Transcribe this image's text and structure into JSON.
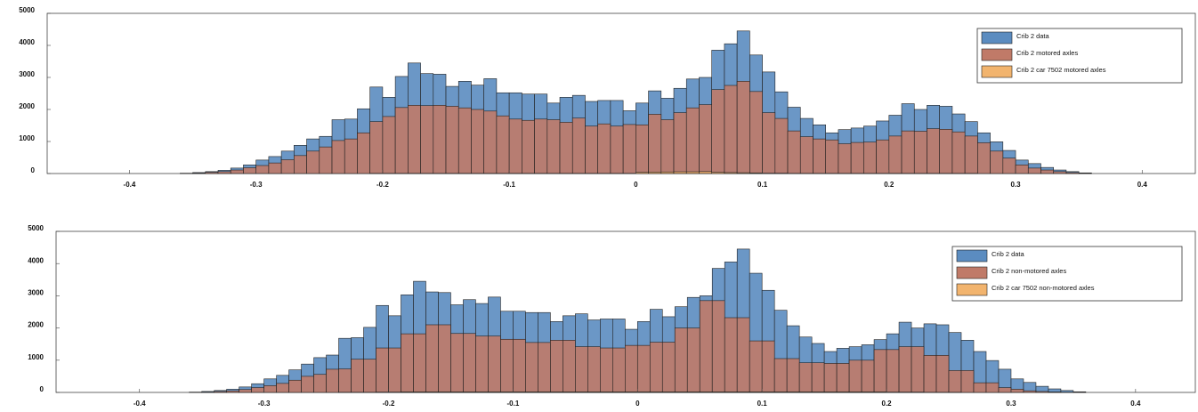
{
  "chart_data": [
    {
      "type": "histogram",
      "legend": "upper right",
      "grid": false,
      "xlim": [
        -0.465,
        0.442
      ],
      "ylim": [
        0,
        5000
      ],
      "xticks": [
        -0.4,
        -0.3,
        -0.2,
        -0.1,
        0,
        0.1,
        0.2,
        0.3,
        0.4
      ],
      "yticks": [
        0,
        1000,
        2000,
        3000,
        4000,
        5000
      ],
      "bins": [
        -0.36,
        -0.35,
        -0.34,
        -0.33,
        -0.32,
        -0.31,
        -0.3,
        -0.29,
        -0.28,
        -0.27,
        -0.26,
        -0.25,
        -0.24,
        -0.23,
        -0.22,
        -0.21,
        -0.2,
        -0.19,
        -0.18,
        -0.17,
        -0.16,
        -0.15,
        -0.14,
        -0.13,
        -0.12,
        -0.11,
        -0.1,
        -0.09,
        -0.08,
        -0.07,
        -0.06,
        -0.05,
        -0.04,
        -0.03,
        -0.02,
        -0.01,
        0,
        0.01,
        0.02,
        0.03,
        0.04,
        0.05,
        0.06,
        0.07,
        0.08,
        0.09,
        0.1,
        0.11,
        0.12,
        0.13,
        0.14,
        0.15,
        0.16,
        0.17,
        0.18,
        0.19,
        0.2,
        0.21,
        0.22,
        0.23,
        0.24,
        0.25,
        0.26,
        0.27,
        0.28,
        0.29,
        0.3,
        0.31,
        0.32,
        0.33,
        0.34,
        0.35,
        0.36
      ],
      "series": [
        {
          "name": "Crib 2 data",
          "color": "#5b8cc0",
          "values": [
            10,
            30,
            60,
            100,
            170,
            270,
            420,
            530,
            700,
            880,
            1080,
            1160,
            1680,
            1700,
            2020,
            2700,
            2380,
            3030,
            3450,
            3120,
            3100,
            2720,
            2880,
            2760,
            2960,
            2520,
            2520,
            2480,
            2480,
            2200,
            2380,
            2440,
            2250,
            2280,
            2280,
            1960,
            2200,
            2580,
            2350,
            2660,
            2950,
            3000,
            3850,
            4050,
            4450,
            3700,
            3170,
            2550,
            2070,
            1720,
            1520,
            1270,
            1370,
            1420,
            1480,
            1640,
            1820,
            2180,
            2000,
            2130,
            2100,
            1860,
            1620,
            1270,
            990,
            720,
            420,
            310,
            190,
            110,
            60,
            20
          ]
        },
        {
          "name": "Crib 2 motored axles",
          "color": "#c07a68",
          "values": [
            5,
            15,
            40,
            60,
            110,
            180,
            250,
            330,
            430,
            560,
            700,
            830,
            1030,
            1080,
            1270,
            1620,
            1780,
            2060,
            2130,
            2120,
            2130,
            2100,
            2050,
            2000,
            1950,
            1800,
            1700,
            1660,
            1700,
            1680,
            1600,
            1730,
            1480,
            1550,
            1480,
            1530,
            1520,
            1850,
            1680,
            1900,
            2050,
            2150,
            2620,
            2750,
            2880,
            2560,
            1900,
            1720,
            1330,
            1150,
            1080,
            1050,
            930,
            970,
            980,
            1050,
            1170,
            1330,
            1320,
            1400,
            1380,
            1300,
            1170,
            960,
            700,
            480,
            270,
            170,
            110,
            60,
            30,
            10
          ]
        },
        {
          "name": "Crib 2 car 7502 motored axles",
          "color": "#f2b46e",
          "values": [
            0,
            0,
            0,
            0,
            0,
            0,
            0,
            0,
            0,
            0,
            0,
            0,
            0,
            0,
            0,
            5,
            5,
            5,
            5,
            5,
            5,
            5,
            5,
            5,
            5,
            5,
            5,
            5,
            5,
            5,
            5,
            5,
            5,
            5,
            5,
            5,
            40,
            45,
            50,
            55,
            55,
            60,
            40,
            30,
            25,
            20,
            10,
            10,
            5,
            5,
            5,
            5,
            5,
            5,
            5,
            5,
            5,
            5,
            5,
            5,
            5,
            5,
            5,
            0,
            0,
            0,
            0,
            0,
            0,
            0,
            0,
            0
          ]
        }
      ]
    },
    {
      "type": "histogram",
      "legend": "upper right",
      "grid": false,
      "xlim": [
        -0.467,
        0.448
      ],
      "ylim": [
        0,
        5000
      ],
      "xticks": [
        -0.4,
        -0.3,
        -0.2,
        -0.1,
        0,
        0.1,
        0.2,
        0.3,
        0.4
      ],
      "yticks": [
        0,
        1000,
        2000,
        3000,
        4000,
        5000
      ],
      "bins": [
        -0.36,
        -0.35,
        -0.34,
        -0.33,
        -0.32,
        -0.31,
        -0.3,
        -0.29,
        -0.28,
        -0.27,
        -0.26,
        -0.25,
        -0.24,
        -0.23,
        -0.22,
        -0.21,
        -0.2,
        -0.19,
        -0.18,
        -0.17,
        -0.16,
        -0.15,
        -0.14,
        -0.13,
        -0.12,
        -0.11,
        -0.1,
        -0.09,
        -0.08,
        -0.07,
        -0.06,
        -0.05,
        -0.04,
        -0.03,
        -0.02,
        -0.01,
        0,
        0.01,
        0.02,
        0.03,
        0.04,
        0.05,
        0.06,
        0.07,
        0.08,
        0.09,
        0.1,
        0.11,
        0.12,
        0.13,
        0.14,
        0.15,
        0.16,
        0.17,
        0.18,
        0.19,
        0.2,
        0.21,
        0.22,
        0.23,
        0.24,
        0.25,
        0.26,
        0.27,
        0.28,
        0.29,
        0.3,
        0.31,
        0.32,
        0.33,
        0.34,
        0.35,
        0.36
      ],
      "series": [
        {
          "name": "Crib 2 data",
          "color": "#5b8cc0",
          "values": [
            10,
            30,
            60,
            100,
            170,
            270,
            420,
            530,
            700,
            880,
            1080,
            1160,
            1680,
            1700,
            2020,
            2700,
            2380,
            3030,
            3450,
            3120,
            3100,
            2720,
            2880,
            2760,
            2960,
            2520,
            2520,
            2480,
            2480,
            2200,
            2380,
            2440,
            2250,
            2280,
            2280,
            1960,
            2200,
            2580,
            2350,
            2660,
            2950,
            3000,
            3850,
            4050,
            4450,
            3700,
            3170,
            2550,
            2070,
            1720,
            1520,
            1270,
            1370,
            1420,
            1480,
            1640,
            1820,
            2180,
            2000,
            2130,
            2100,
            1860,
            1620,
            1270,
            990,
            720,
            420,
            310,
            190,
            110,
            60,
            20
          ]
        },
        {
          "name": "Crib 2 non-motored axles",
          "color": "#c07a68",
          "values": [
            5,
            10,
            30,
            50,
            90,
            150,
            210,
            280,
            380,
            500,
            560,
            720,
            730,
            1030,
            1030,
            1380,
            1380,
            1820,
            1820,
            2100,
            2100,
            1830,
            1830,
            1750,
            1750,
            1650,
            1650,
            1550,
            1550,
            1620,
            1620,
            1420,
            1420,
            1380,
            1380,
            1460,
            1460,
            1560,
            1560,
            2000,
            2000,
            2850,
            2850,
            2320,
            2320,
            1600,
            1600,
            1050,
            1050,
            920,
            920,
            900,
            900,
            1000,
            1000,
            1330,
            1330,
            1420,
            1420,
            1150,
            1150,
            680,
            680,
            300,
            300,
            150,
            100,
            50,
            30,
            15,
            8,
            3
          ]
        },
        {
          "name": "Crib 2 car 7502 non-motored axles",
          "color": "#f2b46e",
          "values": [
            0,
            0,
            0,
            0,
            0,
            0,
            0,
            0,
            0,
            0,
            0,
            0,
            5,
            5,
            5,
            10,
            10,
            20,
            20,
            20,
            20,
            20,
            20,
            20,
            20,
            20,
            20,
            20,
            20,
            20,
            20,
            20,
            20,
            20,
            20,
            20,
            20,
            20,
            20,
            20,
            20,
            20,
            20,
            20,
            20,
            20,
            20,
            20,
            20,
            20,
            20,
            20,
            20,
            20,
            20,
            20,
            10,
            10,
            10,
            5,
            5,
            5,
            0,
            0,
            0,
            0,
            0,
            0,
            0,
            0,
            0,
            0
          ]
        }
      ]
    }
  ]
}
